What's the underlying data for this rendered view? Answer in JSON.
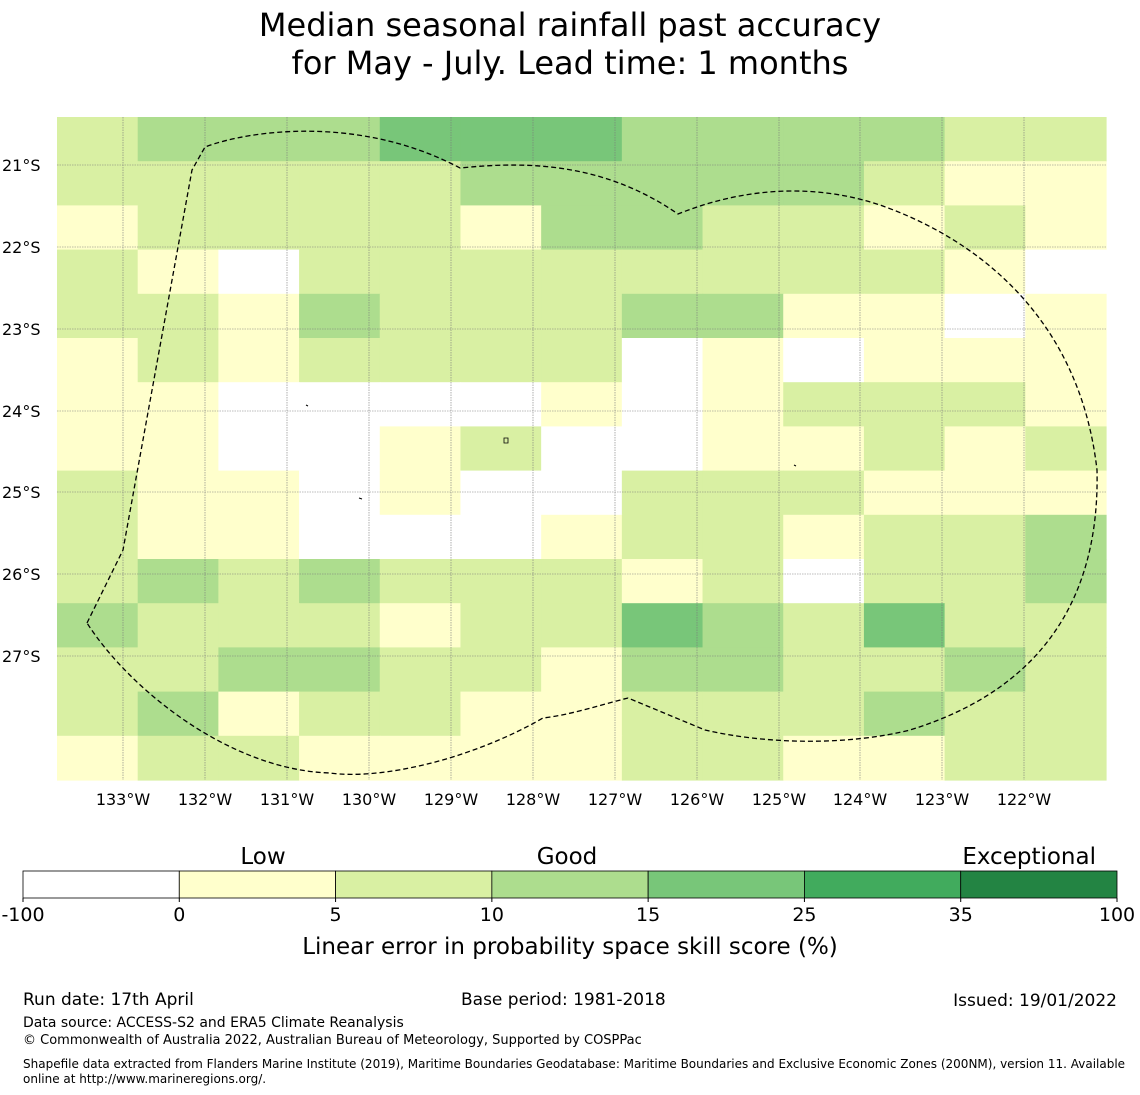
{
  "title_line1": "Median seasonal rainfall past accuracy",
  "title_line2": "for May - July. Lead time: 1 months",
  "map": {
    "lat_labels": [
      "21°S",
      "22°S",
      "23°S",
      "24°S",
      "25°S",
      "26°S",
      "27°S"
    ],
    "lon_labels": [
      "133°W",
      "132°W",
      "131°W",
      "130°W",
      "129°W",
      "128°W",
      "127°W",
      "126°W",
      "125°W",
      "124°W",
      "123°W",
      "122°W"
    ],
    "grid_rows": [
      "2333444333322",
      "2222233333211",
      "1222213322121",
      "2102222222210",
      "2213222331101",
      "1212222010111",
      "1100001012221",
      "1100120011212",
      "2110100222111",
      "2110001221223",
      "2323222120223",
      "3222122432422",
      "2233221332232",
      "2312211222322",
      "1221111221122"
    ],
    "colors": {
      "0": "#ffffff",
      "1": "#ffffcc",
      "2": "#d9f0a3",
      "3": "#addd8e",
      "4": "#78c679",
      "5": "#41ab5d",
      "6": "#238443"
    }
  },
  "legend": {
    "bin_labels": [
      "Low",
      "Good",
      "Exceptional"
    ],
    "ticks": [
      "-100",
      "0",
      "5",
      "10",
      "15",
      "25",
      "35",
      "100"
    ],
    "colors": [
      "#ffffff",
      "#ffffcc",
      "#d9f0a3",
      "#addd8e",
      "#78c679",
      "#41ab5d",
      "#238443"
    ],
    "axis_label": "Linear error in probability space skill score (%)"
  },
  "footer": {
    "run_date": "Run date: 17th April",
    "base_period": "Base period: 1981-2018",
    "issued": "Issued: 19/01/2022",
    "data_source": "Data source: ACCESS-S2 and ERA5 Climate Reanalysis",
    "copyright": "© Commonwealth of Australia 2022, Australian Bureau of Meteorology, Supported by COSPPac",
    "shapefile": "Shapefile data extracted from Flanders Marine Institute (2019), Maritime Boundaries Geodatabase: Maritime Boundaries and Exclusive Economic Zones (200NM), version 11. Available online at http://www.marineregions.org/."
  }
}
